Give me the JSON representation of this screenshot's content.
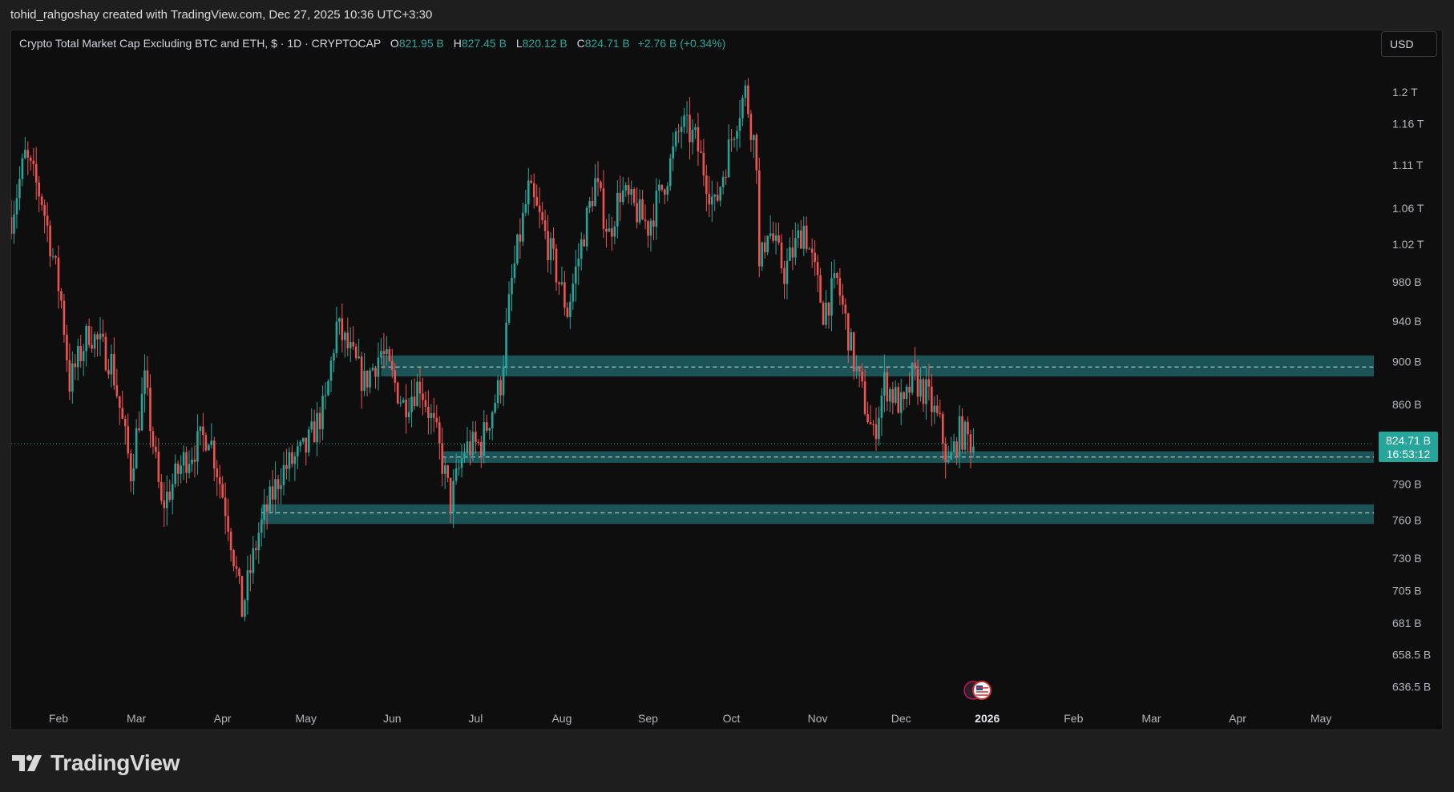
{
  "header": {
    "attribution": "tohid_rahgoshay created with TradingView.com, Dec 27, 2025 10:36 UTC+3:30"
  },
  "legend": {
    "symbol": "Crypto Total Market Cap Excluding BTC and ETH, $ · 1D · CRYPTOCAP",
    "open_label": "O",
    "open": "821.95 B",
    "high_label": "H",
    "high": "827.45 B",
    "low_label": "L",
    "low": "820.12 B",
    "close_label": "C",
    "close": "824.71 B",
    "change": "+2.76 B (+0.34%)"
  },
  "currency_button": "USD",
  "last_price": {
    "value": "824.71 B",
    "countdown": "16:53:12"
  },
  "footer": {
    "brand": "TradingView"
  },
  "colors": {
    "up": "#26a69a",
    "down": "#ef5350",
    "zone": "#1f5f63",
    "background": "#0e0e0e"
  },
  "chart_data": {
    "type": "candlestick",
    "title": "Crypto Total Market Cap Excluding BTC and ETH, $ · 1D · CRYPTOCAP",
    "y_scale": "log",
    "ylim_billions": [
      620,
      1230
    ],
    "y_ticks": [
      {
        "label": "1.2 T",
        "value": 1200
      },
      {
        "label": "1.16 T",
        "value": 1160
      },
      {
        "label": "1.11 T",
        "value": 1110
      },
      {
        "label": "1.06 T",
        "value": 1060
      },
      {
        "label": "1.02 T",
        "value": 1020
      },
      {
        "label": "980 B",
        "value": 980
      },
      {
        "label": "940 B",
        "value": 940
      },
      {
        "label": "900 B",
        "value": 900
      },
      {
        "label": "860 B",
        "value": 860
      },
      {
        "label": "790 B",
        "value": 790
      },
      {
        "label": "760 B",
        "value": 760
      },
      {
        "label": "730 B",
        "value": 730
      },
      {
        "label": "705 B",
        "value": 705
      },
      {
        "label": "681 B",
        "value": 681
      },
      {
        "label": "658.5 B",
        "value": 658.5
      },
      {
        "label": "636.5 B",
        "value": 636.5
      }
    ],
    "x_ticks": [
      {
        "label": "Feb",
        "date": "2025-02-01"
      },
      {
        "label": "Mar",
        "date": "2025-03-01"
      },
      {
        "label": "Apr",
        "date": "2025-04-01"
      },
      {
        "label": "May",
        "date": "2025-05-01"
      },
      {
        "label": "Jun",
        "date": "2025-06-01"
      },
      {
        "label": "Jul",
        "date": "2025-07-01"
      },
      {
        "label": "Aug",
        "date": "2025-08-01"
      },
      {
        "label": "Sep",
        "date": "2025-09-01"
      },
      {
        "label": "Oct",
        "date": "2025-10-01"
      },
      {
        "label": "Nov",
        "date": "2025-11-01"
      },
      {
        "label": "Dec",
        "date": "2025-12-01"
      },
      {
        "label": "2026",
        "date": "2026-01-01",
        "bold": true
      },
      {
        "label": "Feb",
        "date": "2026-02-01"
      },
      {
        "label": "Mar",
        "date": "2026-03-01"
      },
      {
        "label": "Apr",
        "date": "2026-04-01"
      },
      {
        "label": "May",
        "date": "2026-05-01"
      }
    ],
    "date_range": [
      "2025-01-15",
      "2026-05-20"
    ],
    "last_close": 824.71,
    "zones": [
      {
        "from_date": "2025-05-28",
        "low": 886,
        "high": 906,
        "mid": 895
      },
      {
        "from_date": "2025-06-19",
        "low": 808,
        "high": 818,
        "mid": 813
      },
      {
        "from_date": "2025-04-15",
        "low": 757,
        "high": 773,
        "mid": 766
      }
    ],
    "price_path": [
      {
        "date": "2025-01-15",
        "value": 1050
      },
      {
        "date": "2025-01-20",
        "value": 1120
      },
      {
        "date": "2025-01-26",
        "value": 1070
      },
      {
        "date": "2025-02-02",
        "value": 960
      },
      {
        "date": "2025-02-05",
        "value": 880
      },
      {
        "date": "2025-02-12",
        "value": 930
      },
      {
        "date": "2025-02-20",
        "value": 900
      },
      {
        "date": "2025-02-27",
        "value": 800
      },
      {
        "date": "2025-03-04",
        "value": 880
      },
      {
        "date": "2025-03-10",
        "value": 770
      },
      {
        "date": "2025-03-18",
        "value": 810
      },
      {
        "date": "2025-03-27",
        "value": 835
      },
      {
        "date": "2025-04-03",
        "value": 760
      },
      {
        "date": "2025-04-08",
        "value": 690
      },
      {
        "date": "2025-04-14",
        "value": 750
      },
      {
        "date": "2025-04-22",
        "value": 800
      },
      {
        "date": "2025-05-01",
        "value": 820
      },
      {
        "date": "2025-05-08",
        "value": 860
      },
      {
        "date": "2025-05-12",
        "value": 935
      },
      {
        "date": "2025-05-22",
        "value": 880
      },
      {
        "date": "2025-05-28",
        "value": 910
      },
      {
        "date": "2025-06-05",
        "value": 860
      },
      {
        "date": "2025-06-11",
        "value": 880
      },
      {
        "date": "2025-06-17",
        "value": 830
      },
      {
        "date": "2025-06-22",
        "value": 775
      },
      {
        "date": "2025-06-27",
        "value": 820
      },
      {
        "date": "2025-07-03",
        "value": 825
      },
      {
        "date": "2025-07-10",
        "value": 880
      },
      {
        "date": "2025-07-14",
        "value": 980
      },
      {
        "date": "2025-07-20",
        "value": 1080
      },
      {
        "date": "2025-07-25",
        "value": 1040
      },
      {
        "date": "2025-08-03",
        "value": 950
      },
      {
        "date": "2025-08-08",
        "value": 1020
      },
      {
        "date": "2025-08-13",
        "value": 1090
      },
      {
        "date": "2025-08-18",
        "value": 1030
      },
      {
        "date": "2025-08-22",
        "value": 1080
      },
      {
        "date": "2025-09-01",
        "value": 1040
      },
      {
        "date": "2025-09-08",
        "value": 1100
      },
      {
        "date": "2025-09-13",
        "value": 1160
      },
      {
        "date": "2025-09-18",
        "value": 1140
      },
      {
        "date": "2025-09-25",
        "value": 1060
      },
      {
        "date": "2025-10-03",
        "value": 1170
      },
      {
        "date": "2025-10-06",
        "value": 1200
      },
      {
        "date": "2025-10-10",
        "value": 1120
      },
      {
        "date": "2025-10-11",
        "value": 990
      },
      {
        "date": "2025-10-14",
        "value": 1040
      },
      {
        "date": "2025-10-20",
        "value": 990
      },
      {
        "date": "2025-10-27",
        "value": 1040
      },
      {
        "date": "2025-11-03",
        "value": 950
      },
      {
        "date": "2025-11-08",
        "value": 980
      },
      {
        "date": "2025-11-14",
        "value": 900
      },
      {
        "date": "2025-11-21",
        "value": 830
      },
      {
        "date": "2025-11-25",
        "value": 880
      },
      {
        "date": "2025-12-02",
        "value": 855
      },
      {
        "date": "2025-12-05",
        "value": 885
      },
      {
        "date": "2025-12-10",
        "value": 870
      },
      {
        "date": "2025-12-15",
        "value": 840
      },
      {
        "date": "2025-12-18",
        "value": 805
      },
      {
        "date": "2025-12-22",
        "value": 835
      },
      {
        "date": "2025-12-27",
        "value": 824.71
      }
    ]
  }
}
